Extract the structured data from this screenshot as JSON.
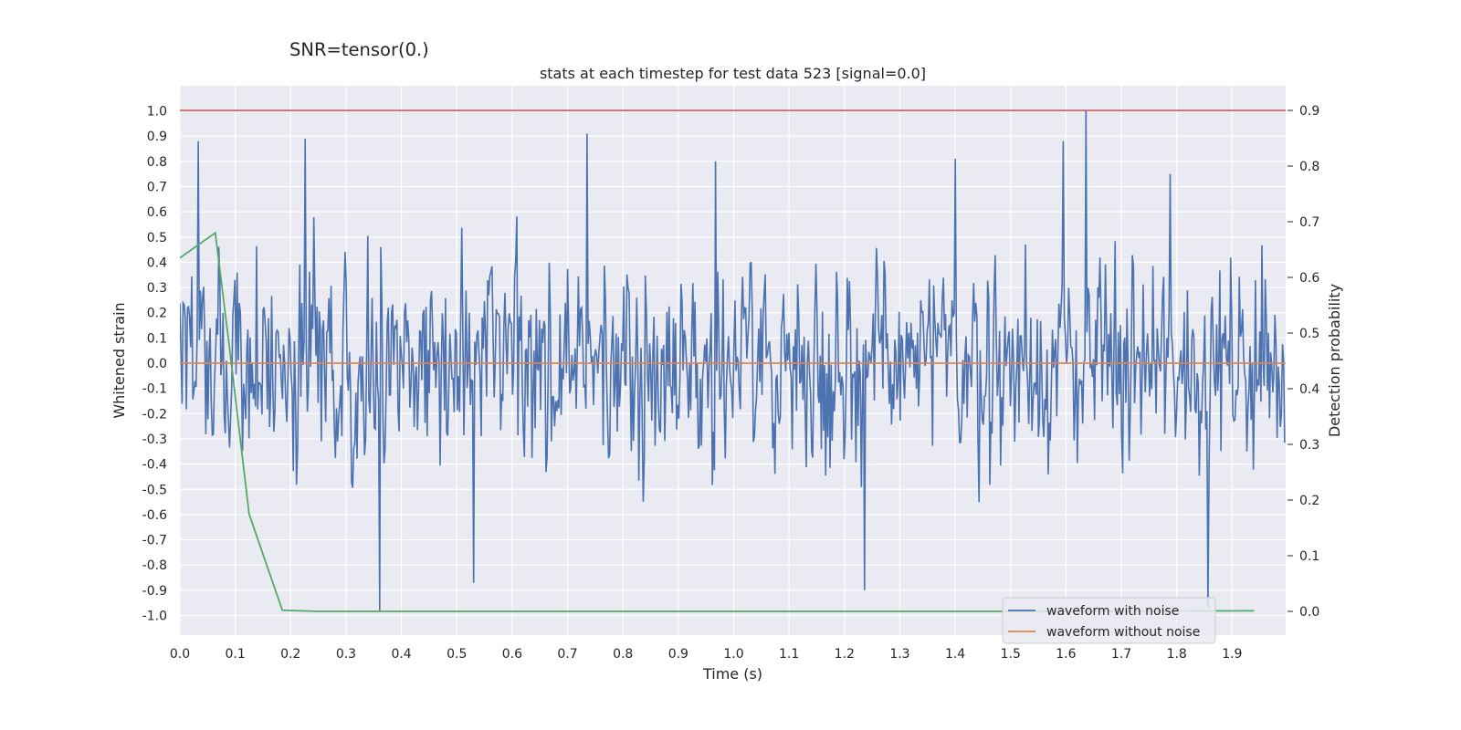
{
  "chart_data": {
    "type": "line",
    "suptitle": "SNR=tensor(0.)",
    "title": "stats at each timestep for test data 523 [signal=0.0]",
    "xlabel": "Time (s)",
    "ylabel": "Whitened strain",
    "y2label": "Detection probability",
    "xlim": [
      0.0,
      2.0
    ],
    "ylim": [
      -1.08,
      1.1
    ],
    "y2lim": [
      -0.04,
      0.94
    ],
    "xticks": [
      "0.0",
      "0.1",
      "0.2",
      "0.3",
      "0.4",
      "0.5",
      "0.6",
      "0.7",
      "0.8",
      "0.9",
      "1.0",
      "1.1",
      "1.2",
      "1.3",
      "1.4",
      "1.5",
      "1.6",
      "1.7",
      "1.8",
      "1.9"
    ],
    "yticks": [
      "1.0",
      "0.9",
      "0.8",
      "0.7",
      "0.6",
      "0.5",
      "0.4",
      "0.3",
      "0.2",
      "0.1",
      "0.0",
      "-0.1",
      "-0.2",
      "-0.3",
      "-0.4",
      "-0.5",
      "-0.6",
      "-0.7",
      "-0.8",
      "-0.9",
      "-1.0"
    ],
    "y2ticks": [
      "0.9",
      "0.8",
      "0.7",
      "0.6",
      "0.5",
      "0.4",
      "0.3",
      "0.2",
      "0.1",
      "0.0"
    ],
    "threshold": {
      "y2": 0.9,
      "color": "#c44e52"
    },
    "series": [
      {
        "name": "waveform with noise",
        "color": "#4c72b0",
        "axis": "left",
        "dt": 0.00195,
        "n": 1024,
        "amplitude": 0.33,
        "peaks": [
          {
            "x": 0.034,
            "y": 0.88
          },
          {
            "x": 0.227,
            "y": 0.89
          },
          {
            "x": 0.361,
            "y": -0.98
          },
          {
            "x": 0.531,
            "y": -0.87
          },
          {
            "x": 0.736,
            "y": 0.91
          },
          {
            "x": 0.967,
            "y": 0.8
          },
          {
            "x": 1.237,
            "y": -0.9
          },
          {
            "x": 1.4,
            "y": 0.81
          },
          {
            "x": 1.596,
            "y": 0.88
          },
          {
            "x": 1.636,
            "y": 1.0
          },
          {
            "x": 1.857,
            "y": -0.97
          },
          {
            "x": 1.788,
            "y": 0.75
          }
        ]
      },
      {
        "name": "waveform without noise",
        "color": "#dd8452",
        "axis": "left",
        "x": [
          0.0,
          2.0
        ],
        "y": [
          0.0,
          0.0
        ]
      },
      {
        "name": "detection probability",
        "color": "#55a868",
        "axis": "right",
        "x": [
          0.0,
          0.064,
          0.09,
          0.125,
          0.185,
          0.25,
          0.5,
          1.0,
          1.5,
          1.94
        ],
        "y": [
          0.635,
          0.68,
          0.47,
          0.175,
          0.002,
          0.0,
          0.0,
          0.0,
          0.0,
          0.001
        ]
      }
    ],
    "legend": {
      "position": "lower-right",
      "entries": [
        "waveform with noise",
        "waveform without noise"
      ]
    }
  }
}
